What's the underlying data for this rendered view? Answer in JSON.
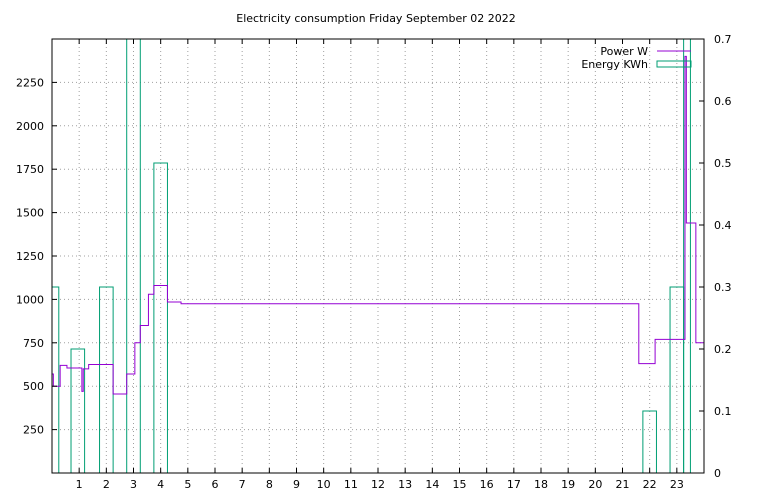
{
  "chart_data": {
    "type": "line",
    "title": "Electricity consumption Friday September 02 2022",
    "xlabel": "",
    "ylabel": "",
    "xlim": [
      0,
      24
    ],
    "ylim": [
      0,
      2500
    ],
    "y2lim": [
      0,
      0.7
    ],
    "x_ticks": [
      1,
      2,
      3,
      4,
      5,
      6,
      7,
      8,
      9,
      10,
      11,
      12,
      13,
      14,
      15,
      16,
      17,
      18,
      19,
      20,
      21,
      22,
      23
    ],
    "y_ticks": [
      250,
      500,
      750,
      1000,
      1250,
      1500,
      1750,
      2000,
      2250
    ],
    "y2_ticks": [
      0,
      0.1,
      0.2,
      0.3,
      0.4,
      0.5,
      0.6,
      0.7
    ],
    "grid": true,
    "legend_position": "top-right",
    "series": [
      {
        "name": "Power W",
        "axis": "left",
        "color": "#9400d3",
        "style": "steps",
        "points": [
          [
            0.0,
            570
          ],
          [
            0.05,
            500
          ],
          [
            0.3,
            620
          ],
          [
            0.55,
            605
          ],
          [
            1.1,
            470
          ],
          [
            1.15,
            600
          ],
          [
            1.35,
            625
          ],
          [
            2.25,
            455
          ],
          [
            2.75,
            570
          ],
          [
            3.05,
            750
          ],
          [
            3.25,
            850
          ],
          [
            3.55,
            1030
          ],
          [
            3.75,
            1080
          ],
          [
            4.25,
            985
          ],
          [
            4.75,
            975
          ],
          [
            21.6,
            630
          ],
          [
            22.2,
            770
          ],
          [
            23.3,
            2400
          ],
          [
            23.35,
            1440
          ],
          [
            23.7,
            750
          ],
          [
            24.0,
            750
          ]
        ]
      },
      {
        "name": "Energy KWh",
        "axis": "right",
        "color": "#009e73",
        "style": "impulse-boxes",
        "bars": [
          [
            0.0,
            0.25,
            0.3
          ],
          [
            0.7,
            1.2,
            0.2
          ],
          [
            1.75,
            2.25,
            0.3
          ],
          [
            2.75,
            3.25,
            0.7
          ],
          [
            3.75,
            4.25,
            0.5
          ],
          [
            21.75,
            22.25,
            0.1
          ],
          [
            22.75,
            23.25,
            0.3
          ],
          [
            23.25,
            23.5,
            0.7
          ]
        ]
      }
    ]
  }
}
